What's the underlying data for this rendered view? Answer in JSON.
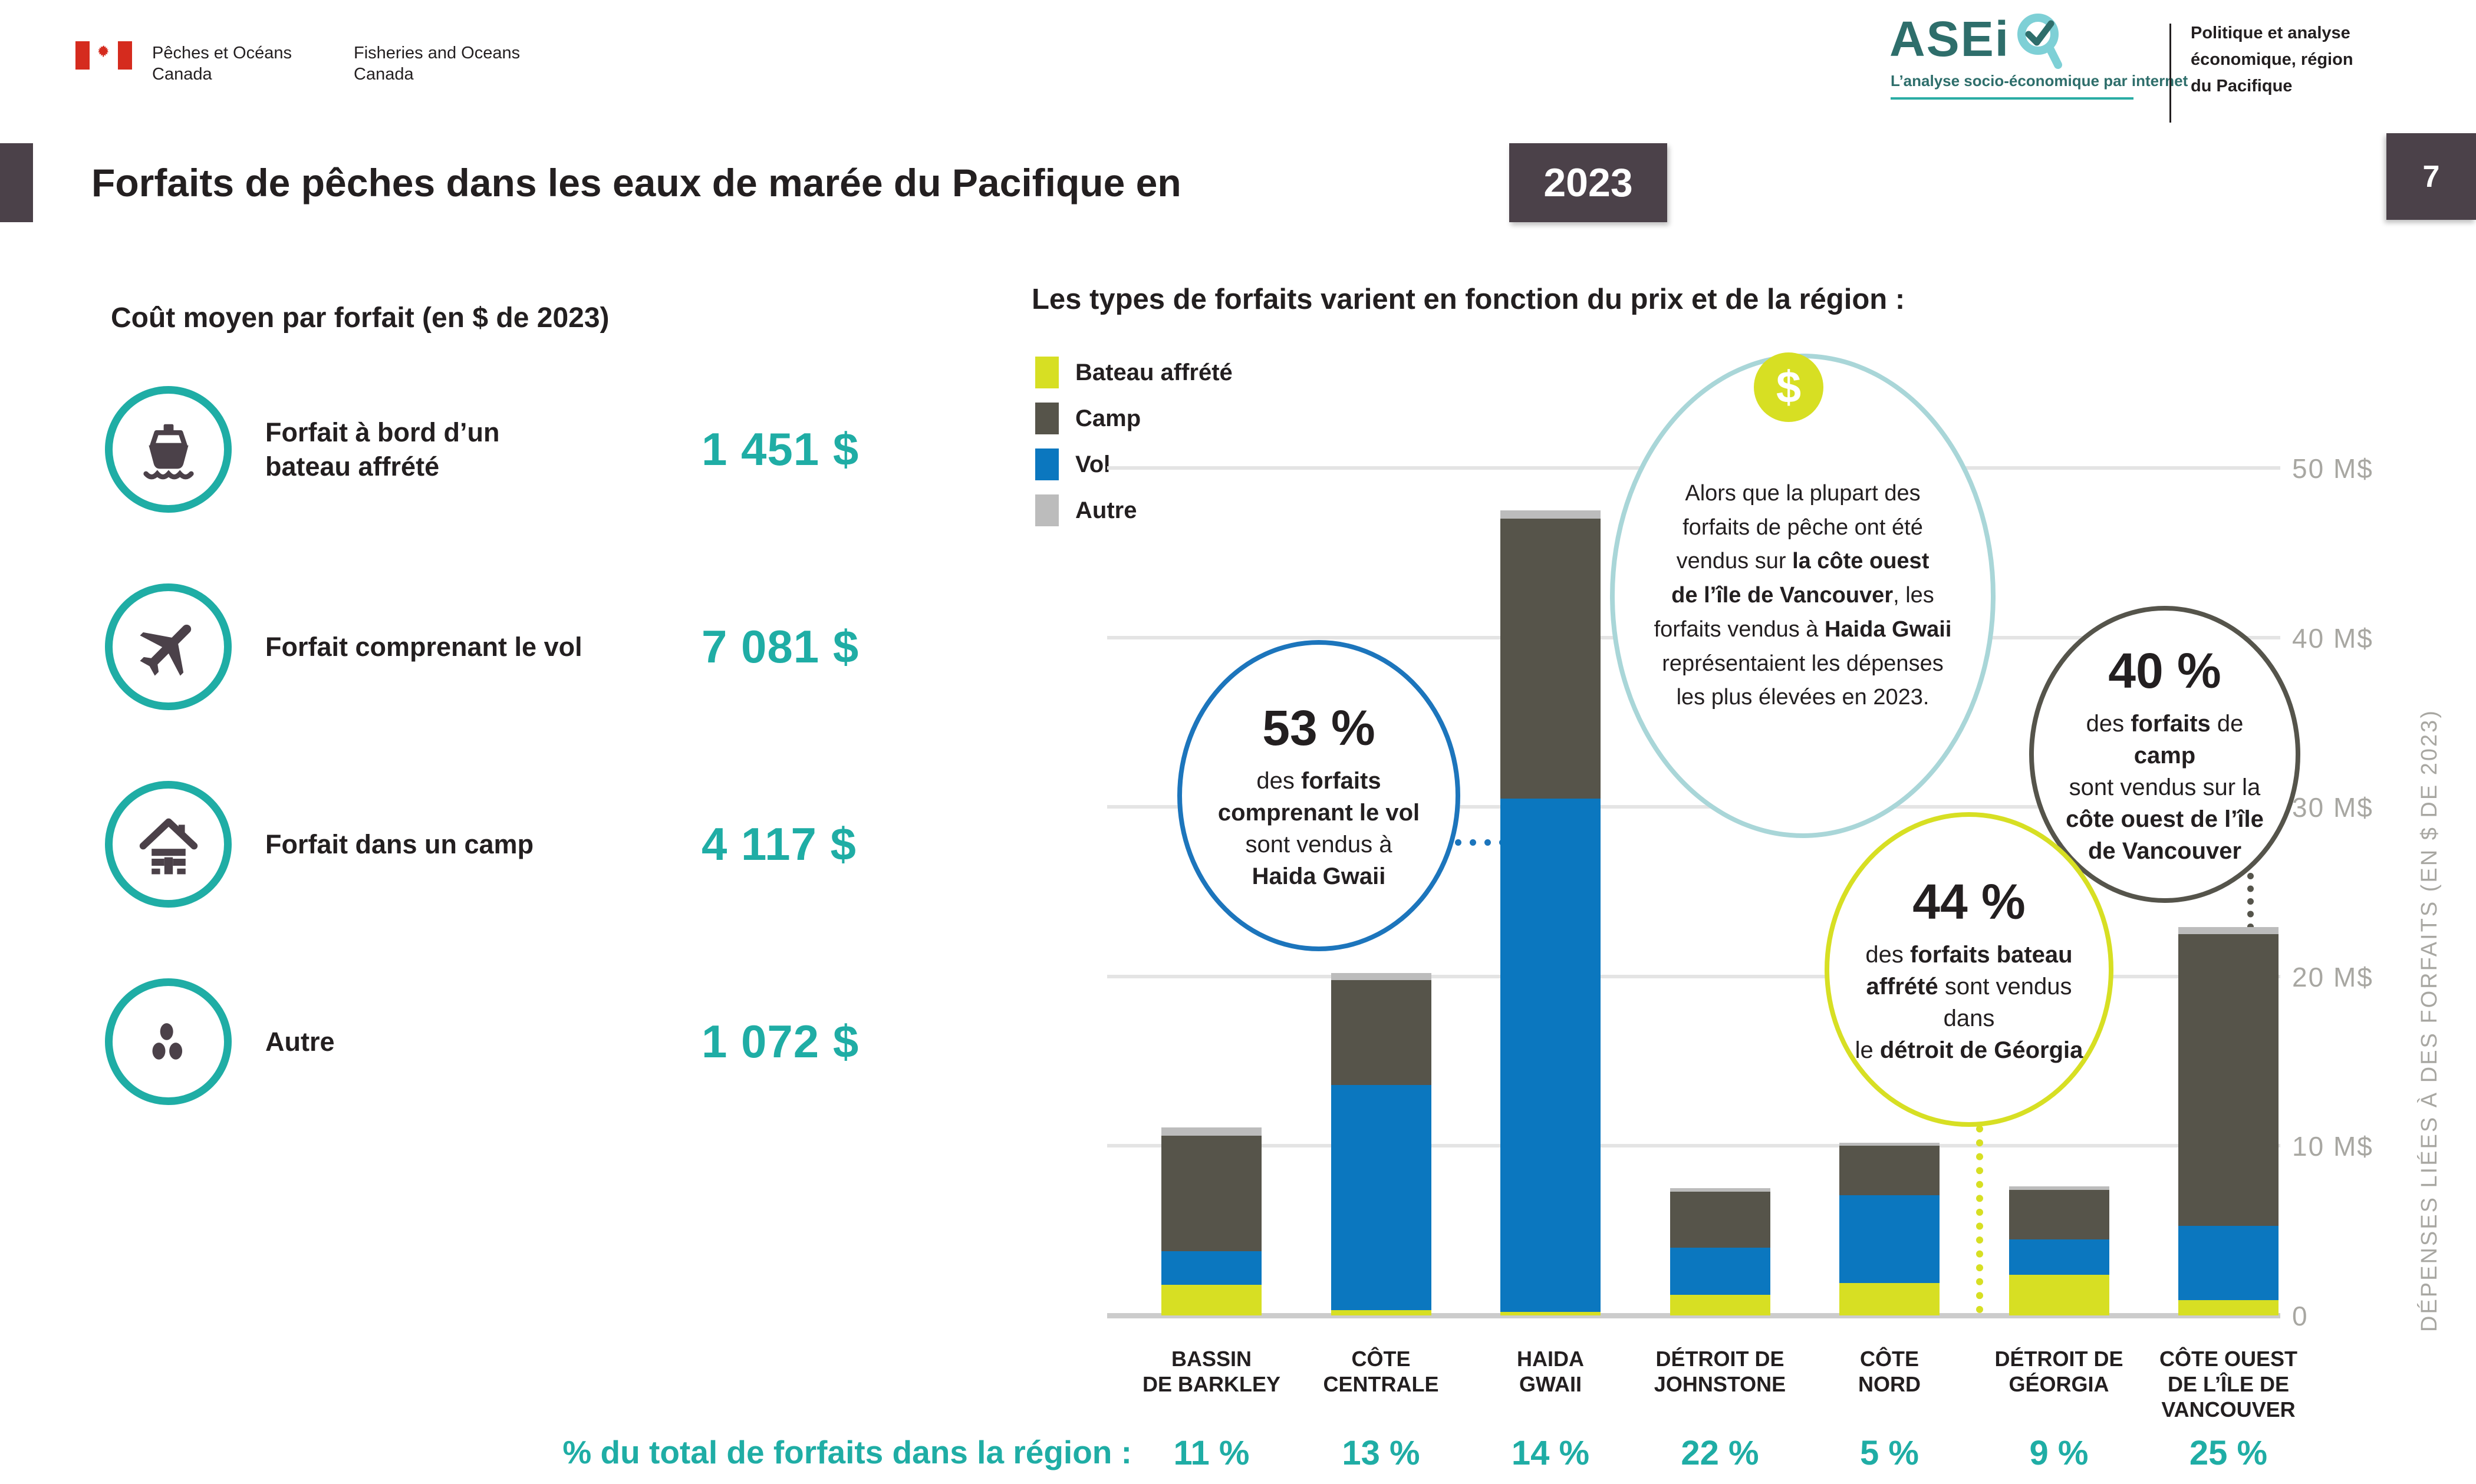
{
  "header": {
    "dept_fr": [
      "Pêches et Océans",
      "Canada"
    ],
    "dept_en": [
      "Fisheries and Oceans",
      "Canada"
    ],
    "aseiq": {
      "wordmark": "ASEi",
      "tagline": "L’analyse socio-économique par internet"
    },
    "unit": [
      "Politique et analyse",
      "économique, région",
      "du Pacifique"
    ]
  },
  "title": {
    "text": "Forfaits de pêches dans les eaux de marée du Pacifique en",
    "year": "2023",
    "page": "7"
  },
  "left_panel": {
    "heading": "Coût moyen par forfait (en $ de 2023)",
    "items": [
      {
        "icon": "boat-icon",
        "label_lines": [
          "Forfait à bord d’un",
          "bateau affrété"
        ],
        "price": "1 451 $"
      },
      {
        "icon": "plane-icon",
        "label_lines": [
          "Forfait comprenant le vol",
          ""
        ],
        "price": "7 081 $"
      },
      {
        "icon": "cabin-icon",
        "label_lines": [
          "Forfait dans un camp",
          ""
        ],
        "price": "4 117 $"
      },
      {
        "icon": "dots-icon",
        "label_lines": [
          "Autre",
          ""
        ],
        "price": "1 072 $"
      }
    ],
    "footer_label": "% du total de forfaits dans la région :"
  },
  "chart_data": {
    "type": "bar",
    "stacked": true,
    "title": "Les types de forfaits varient en fonction du prix et de la région :",
    "ylabel": "DÉPENSES LIÉES À DES FORFAITS (EN $ DE 2023)",
    "units": "M$",
    "ylim": [
      0,
      50
    ],
    "grid": true,
    "legend_position": "top-left",
    "yticks": [
      "0",
      "10 M$",
      "20 M$",
      "30 M$",
      "40 M$",
      "50 M$"
    ],
    "ytick_values": [
      0,
      10,
      20,
      30,
      40,
      50
    ],
    "legend": [
      {
        "label": "Bateau affrété",
        "color": "#d7df23"
      },
      {
        "label": "Camp",
        "color": "#56544a"
      },
      {
        "label": "Vol",
        "color": "#0b77bf"
      },
      {
        "label": "Autre",
        "color": "#bcbcbc"
      }
    ],
    "categories": [
      "BASSIN DE BARKLEY",
      "CÔTE CENTRALE",
      "HAIDA GWAII",
      "DÉTROIT DE JOHNSTONE",
      "CÔTE NORD",
      "DÉTROIT DE GÉORGIA",
      "CÔTE OUEST DE L’ÎLE DE VANCOUVER"
    ],
    "category_lines": [
      [
        "BASSIN",
        "DE BARKLEY"
      ],
      [
        "CÔTE",
        "CENTRALE"
      ],
      [
        "HAIDA",
        "GWAII"
      ],
      [
        "DÉTROIT DE",
        "JOHNSTONE"
      ],
      [
        "CÔTE",
        "NORD"
      ],
      [
        "DÉTROIT DE",
        "GÉORGIA"
      ],
      [
        "CÔTE OUEST",
        "DE L’ÎLE DE",
        "VANCOUVER"
      ]
    ],
    "series": [
      {
        "name": "Bateau affrété",
        "values": [
          1.8,
          0.3,
          0.2,
          1.2,
          1.9,
          2.4,
          0.9
        ]
      },
      {
        "name": "Vol",
        "values": [
          2.0,
          13.3,
          30.3,
          2.8,
          5.2,
          2.1,
          4.4
        ]
      },
      {
        "name": "Camp",
        "values": [
          6.8,
          6.2,
          16.5,
          3.3,
          2.9,
          2.9,
          17.2
        ]
      },
      {
        "name": "Autre",
        "values": [
          0.5,
          0.4,
          0.5,
          0.2,
          0.2,
          0.2,
          0.4
        ]
      }
    ],
    "region_share_percent": [
      "11 %",
      "13 %",
      "14 %",
      "22 %",
      "5 %",
      "9 %",
      "25 %"
    ],
    "annotations": [
      {
        "id": "vol-haida",
        "pct": "53 %",
        "border": "#1c75bc",
        "lines": [
          [
            [
              "des ",
              0
            ],
            [
              "forfaits",
              1
            ]
          ],
          [
            [
              "comprenant le vol",
              1
            ]
          ],
          [
            [
              "sont vendus à",
              0
            ]
          ],
          [
            [
              "Haida Gwaii",
              1
            ]
          ]
        ]
      },
      {
        "id": "note-depenses",
        "badge": "$",
        "badge_color": "#d7df23",
        "border": "#a9d6d8",
        "lines": [
          [
            [
              "Alors que la plupart des",
              0
            ]
          ],
          [
            [
              "forfaits de pêche ont été",
              0
            ]
          ],
          [
            [
              "vendus sur ",
              0
            ],
            [
              "la côte ouest",
              1
            ]
          ],
          [
            [
              "de l’île de Vancouver",
              1
            ],
            [
              ", les",
              0
            ]
          ],
          [
            [
              "forfaits vendus à ",
              0
            ],
            [
              "Haida Gwaii",
              1
            ]
          ],
          [
            [
              "représentaient les dépenses",
              0
            ]
          ],
          [
            [
              "les plus élevées en 2023.",
              0
            ]
          ]
        ]
      },
      {
        "id": "camp-wcvi",
        "pct": "40 %",
        "border": "#55544b",
        "lines": [
          [
            [
              "des ",
              0
            ],
            [
              "forfaits",
              1
            ],
            [
              " de ",
              0
            ],
            [
              "camp",
              1
            ]
          ],
          [
            [
              "sont vendus sur la",
              0
            ]
          ],
          [
            [
              "côte ouest de l’île",
              1
            ]
          ],
          [
            [
              "de Vancouver",
              1
            ]
          ]
        ]
      },
      {
        "id": "bateau-georgia",
        "pct": "44 %",
        "border": "#d7df23",
        "lines": [
          [
            [
              "des ",
              0
            ],
            [
              "forfaits bateau",
              1
            ]
          ],
          [
            [
              "affrété",
              1
            ],
            [
              " sont vendus dans",
              0
            ]
          ],
          [
            [
              "le ",
              0
            ],
            [
              "détroit de Géorgia",
              1
            ]
          ]
        ]
      }
    ],
    "accent_colors": {
      "teal": "#1fada5",
      "dark_box": "#4b4149",
      "flag_red": "#d52b1e"
    }
  }
}
